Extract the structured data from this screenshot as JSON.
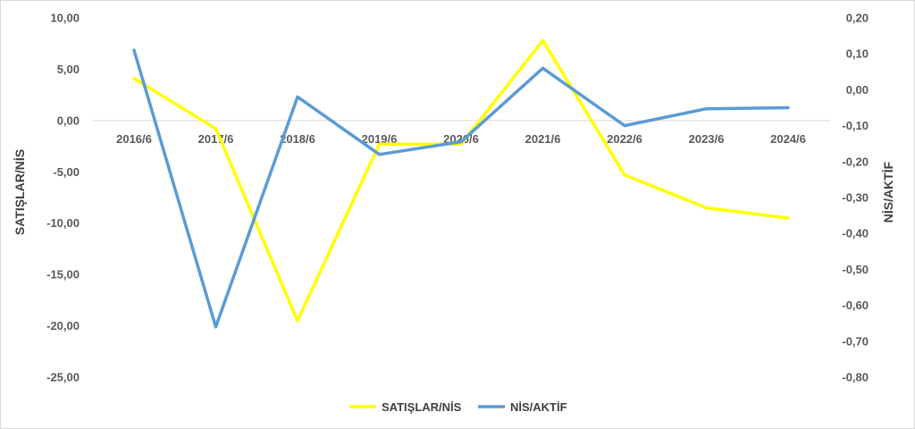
{
  "chart_data": {
    "type": "line",
    "categories": [
      "2016/6",
      "2017/6",
      "2018/6",
      "2019/6",
      "2020/6",
      "2021/6",
      "2022/6",
      "2023/6",
      "2024/6"
    ],
    "series": [
      {
        "name": "SATIŞLAR/NİS",
        "axis": "left",
        "color": "#FFFF00",
        "values": [
          4.1,
          -0.8,
          -19.5,
          -2.3,
          -2.3,
          7.8,
          -5.3,
          -8.5,
          -9.5
        ]
      },
      {
        "name": "NİS/AKTİF",
        "axis": "right",
        "color": "#5B9BD5",
        "values": [
          0.11,
          -0.66,
          -0.02,
          -0.18,
          -0.145,
          0.06,
          -0.1,
          -0.053,
          -0.05
        ]
      }
    ],
    "left_axis": {
      "label": "SATIŞLAR/NİS",
      "ylim": [
        -25,
        10
      ],
      "ticks": [
        "10,00",
        "5,00",
        "0,00",
        "-5,00",
        "-10,00",
        "-15,00",
        "-20,00",
        "-25,00"
      ]
    },
    "right_axis": {
      "label": "NİS/AKTİF",
      "ylim": [
        -0.8,
        0.2
      ],
      "ticks": [
        "0,20",
        "0,10",
        "0,00",
        "-0,10",
        "-0,20",
        "-0,30",
        "-0,40",
        "-0,50",
        "-0,60",
        "-0,70",
        "-0,80"
      ]
    },
    "grid": false,
    "legend_position": "bottom"
  }
}
